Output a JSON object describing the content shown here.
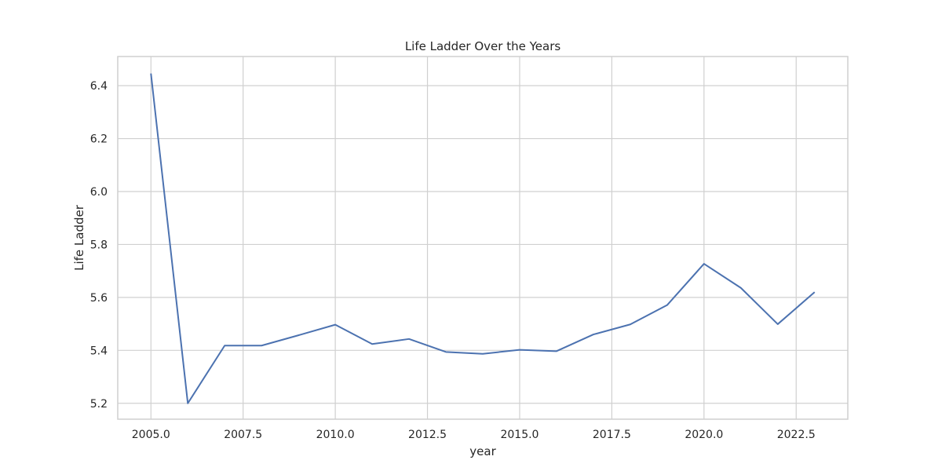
{
  "chart_data": {
    "type": "line",
    "title": "Life Ladder Over the Years",
    "xlabel": "year",
    "ylabel": "Life Ladder",
    "xlim": [
      2004.1,
      2023.9
    ],
    "ylim": [
      5.14,
      6.51
    ],
    "xticks": [
      2005.0,
      2007.5,
      2010.0,
      2012.5,
      2015.0,
      2017.5,
      2020.0,
      2022.5
    ],
    "xtick_labels": [
      "2005.0",
      "2007.5",
      "2010.0",
      "2012.5",
      "2015.0",
      "2017.5",
      "2020.0",
      "2022.5"
    ],
    "yticks": [
      5.2,
      5.4,
      5.6,
      5.8,
      6.0,
      6.2,
      6.4
    ],
    "ytick_labels": [
      "5.2",
      "5.4",
      "5.6",
      "5.8",
      "6.0",
      "6.2",
      "6.4"
    ],
    "grid": true,
    "series": [
      {
        "color": "#4c72b0",
        "x": [
          2005,
          2006,
          2007,
          2008,
          2009,
          2010,
          2011,
          2012,
          2013,
          2014,
          2015,
          2016,
          2017,
          2018,
          2019,
          2020,
          2021,
          2022,
          2023
        ],
        "y": [
          6.446,
          5.2,
          5.418,
          5.418,
          5.457,
          5.497,
          5.424,
          5.443,
          5.394,
          5.387,
          5.402,
          5.397,
          5.46,
          5.498,
          5.571,
          5.727,
          5.636,
          5.499,
          5.62
        ]
      }
    ]
  }
}
